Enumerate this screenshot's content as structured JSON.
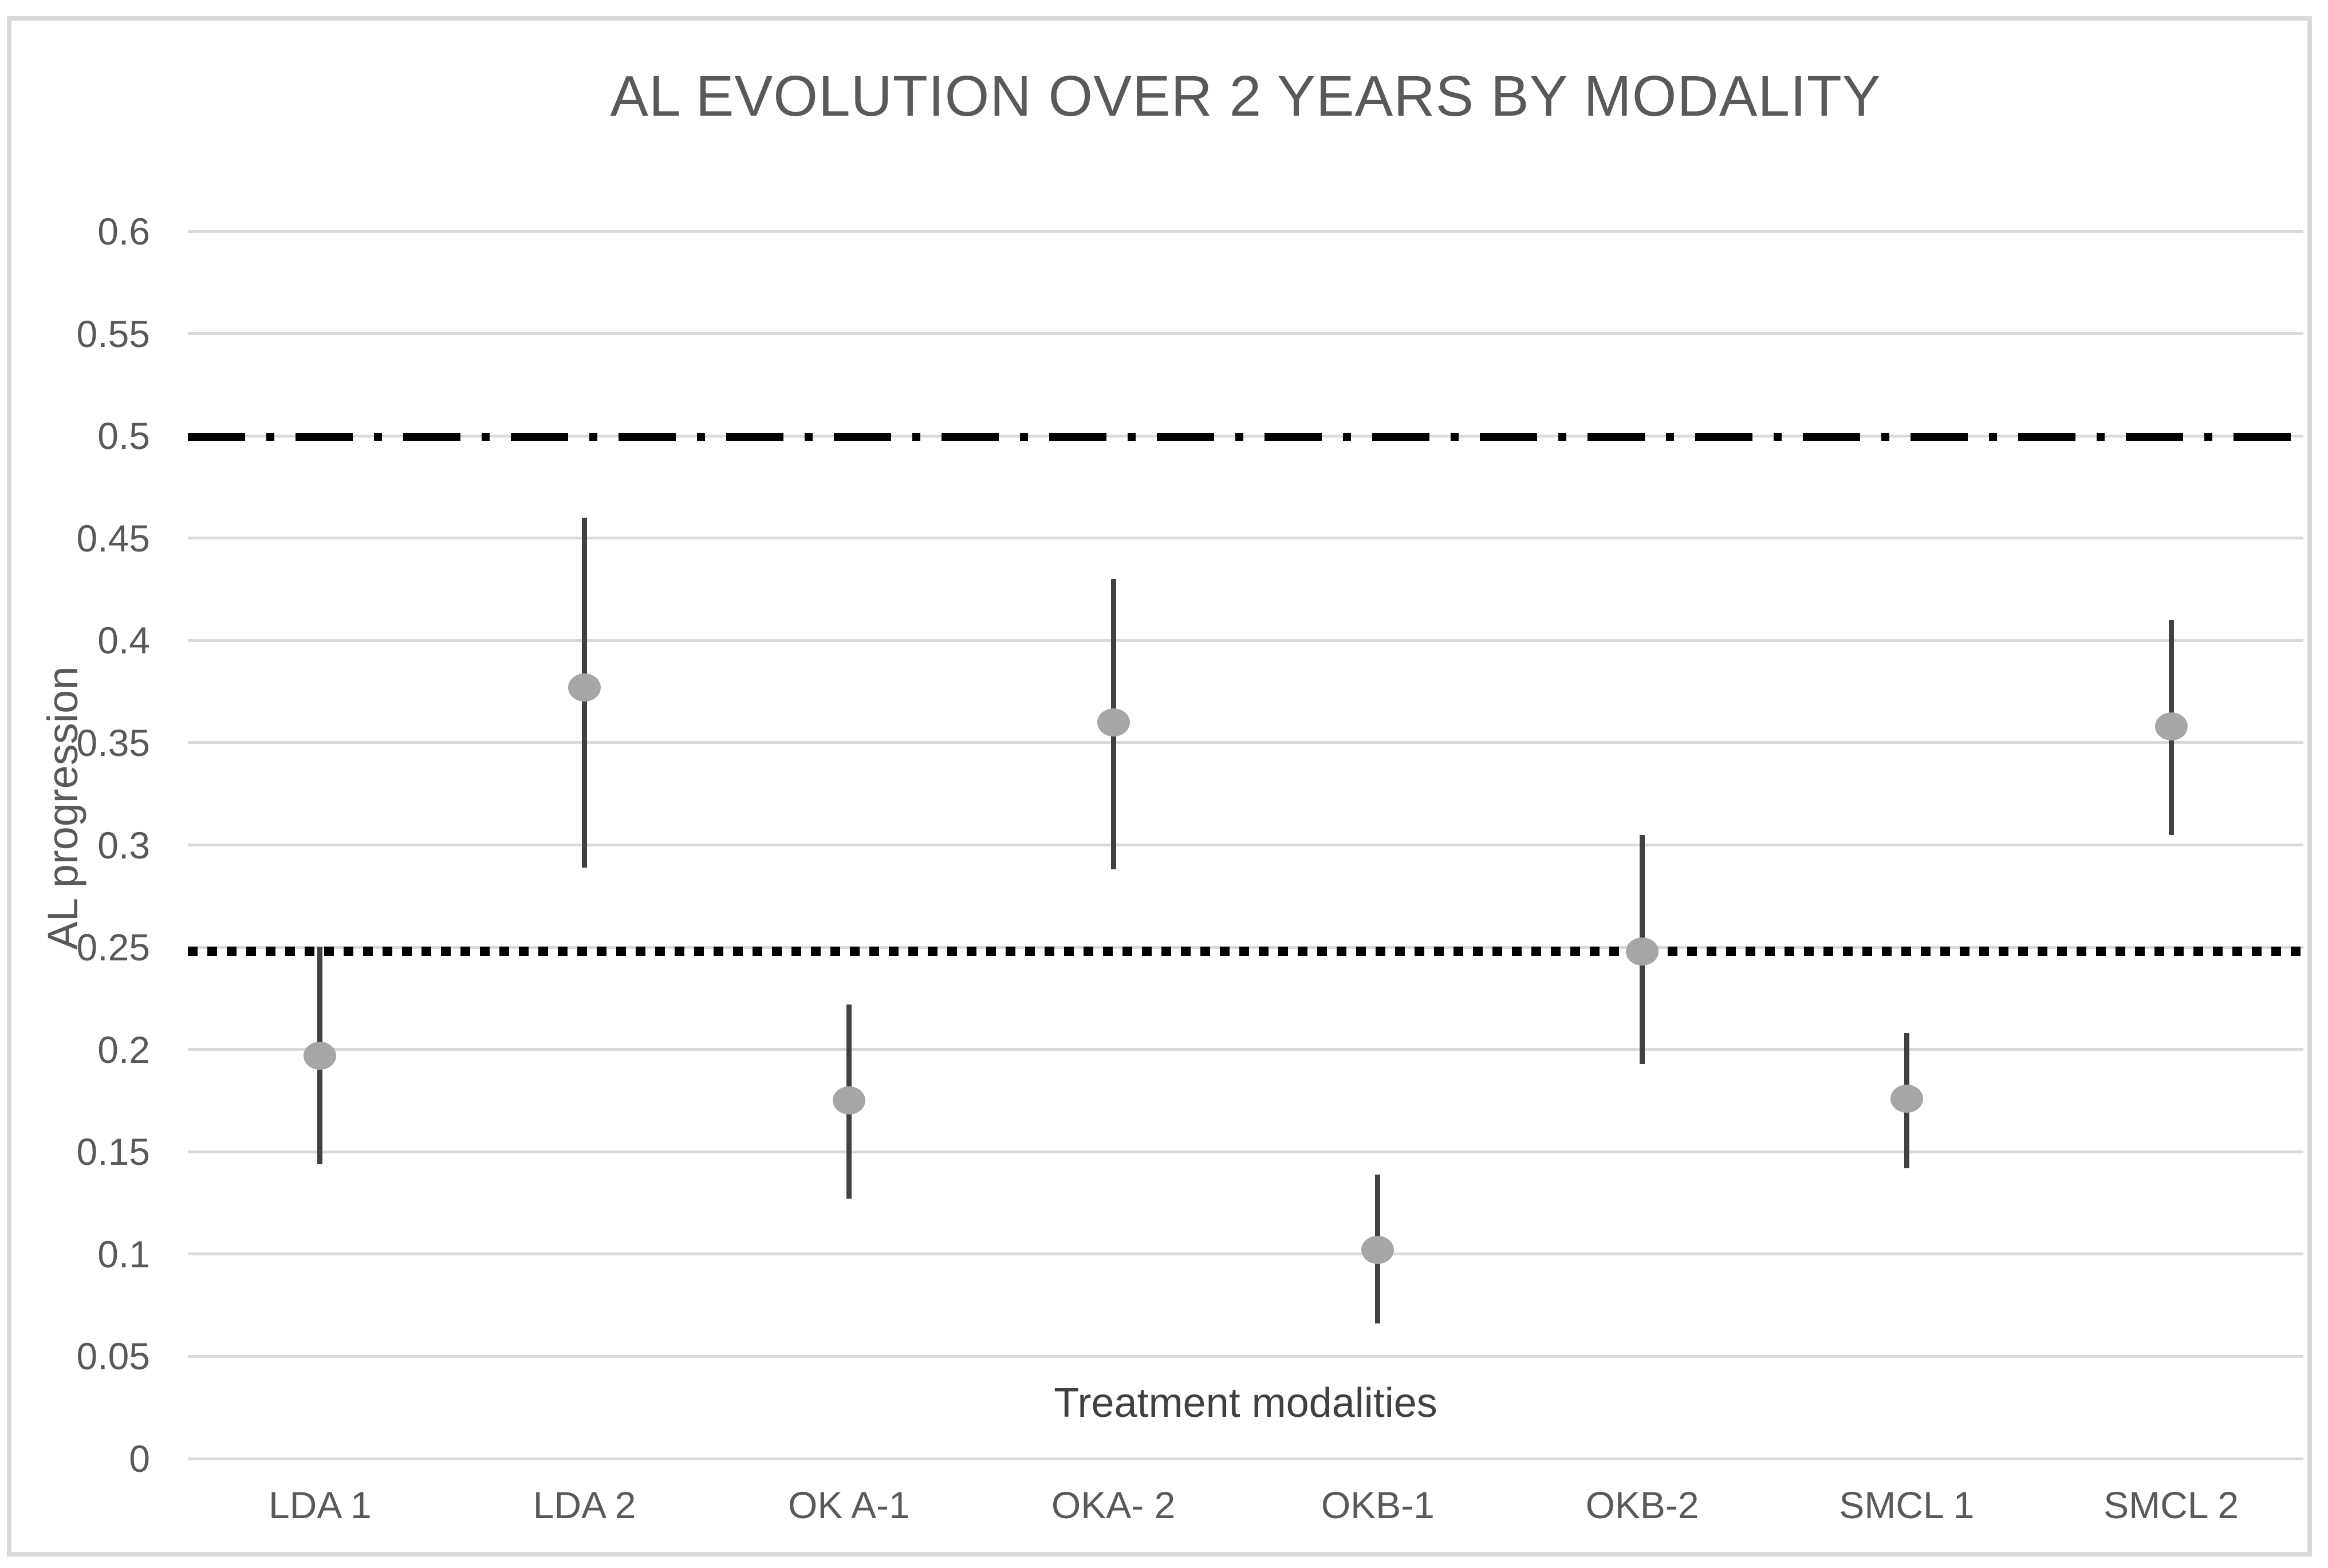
{
  "title": "AL EVOLUTION OVER 2 YEARS BY MODALITY",
  "chart_data": {
    "type": "scatter",
    "title": "AL EVOLUTION OVER 2 YEARS BY MODALITY",
    "xlabel": "Treatment modalities",
    "ylabel": "AL progression",
    "ylim": [
      0,
      0.6
    ],
    "grid": true,
    "legend": "none",
    "y_ticks": [
      {
        "value": 0,
        "label": "0"
      },
      {
        "value": 0.05,
        "label": "0.05"
      },
      {
        "value": 0.1,
        "label": "0.1"
      },
      {
        "value": 0.15,
        "label": "0.15"
      },
      {
        "value": 0.2,
        "label": "0.2"
      },
      {
        "value": 0.25,
        "label": "0.25"
      },
      {
        "value": 0.3,
        "label": "0.3"
      },
      {
        "value": 0.35,
        "label": "0.35"
      },
      {
        "value": 0.4,
        "label": "0.4"
      },
      {
        "value": 0.45,
        "label": "0.45"
      },
      {
        "value": 0.5,
        "label": "0.5"
      },
      {
        "value": 0.55,
        "label": "0.55"
      },
      {
        "value": 0.6,
        "label": "0.6"
      }
    ],
    "categories": [
      "LDA 1",
      "LDA 2",
      "OK A-1",
      "OKA- 2",
      "OKB-1",
      "OKB-2",
      "SMCL 1",
      "SMCL 2"
    ],
    "points": [
      {
        "category": "LDA 1",
        "mean": 0.197,
        "ci_low": 0.144,
        "ci_high": 0.25
      },
      {
        "category": "LDA 2",
        "mean": 0.377,
        "ci_low": 0.289,
        "ci_high": 0.46
      },
      {
        "category": "OK A-1",
        "mean": 0.175,
        "ci_low": 0.127,
        "ci_high": 0.222
      },
      {
        "category": "OKA- 2",
        "mean": 0.36,
        "ci_low": 0.288,
        "ci_high": 0.43
      },
      {
        "category": "OKB-1",
        "mean": 0.102,
        "ci_low": 0.066,
        "ci_high": 0.139
      },
      {
        "category": "OKB-2",
        "mean": 0.248,
        "ci_low": 0.193,
        "ci_high": 0.305
      },
      {
        "category": "SMCL 1",
        "mean": 0.176,
        "ci_low": 0.142,
        "ci_high": 0.208
      },
      {
        "category": "SMCL 2",
        "mean": 0.358,
        "ci_low": 0.305,
        "ci_high": 0.41
      }
    ],
    "reference_lines": [
      {
        "value": 0.5,
        "style": "dash-dot",
        "color": "#000000"
      },
      {
        "value": 0.25,
        "style": "dotted",
        "color": "#000000"
      }
    ],
    "colors": {
      "marker": "#a6a6a6",
      "error_bar": "#404040",
      "gridline": "#d9d9d9",
      "text": "#595959"
    }
  }
}
